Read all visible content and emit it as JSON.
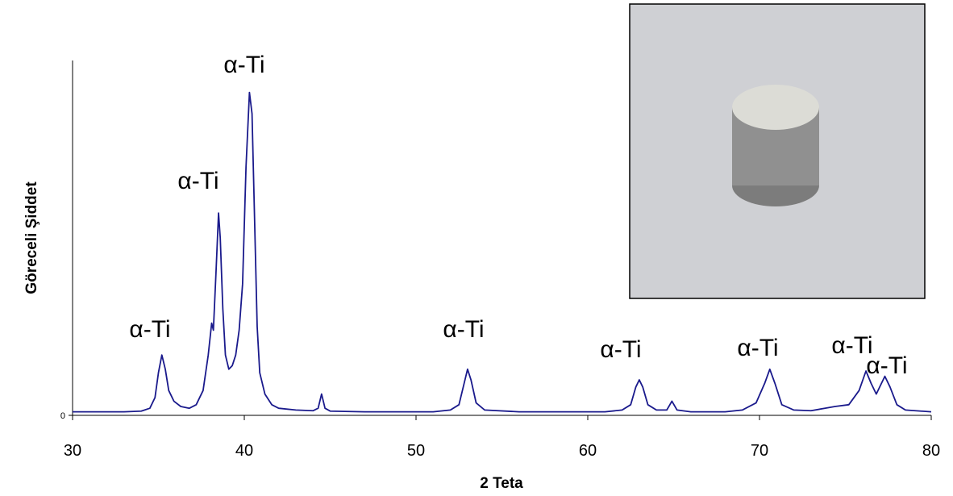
{
  "chart_data": {
    "type": "line",
    "x_label": "2 Teta",
    "y_label": "Göreceli Şiddet",
    "annotations": [
      "α-Ti",
      "α-Ti",
      "α-Ti",
      "α-Ti",
      "α-Ti",
      "α-Ti",
      "α-Ti",
      "α-Ti"
    ],
    "xlim": [
      30,
      80
    ],
    "xticks": [
      30,
      40,
      50,
      60,
      70,
      80
    ],
    "ylim": [
      0,
      100
    ],
    "yticks": [
      0
    ],
    "grid": false,
    "series": [
      {
        "color": "#1a1a8c",
        "x": [
          30,
          31,
          32,
          33,
          34,
          34.5,
          34.8,
          35.0,
          35.2,
          35.4,
          35.6,
          35.9,
          36.3,
          36.8,
          37.2,
          37.6,
          37.9,
          38.1,
          38.2,
          38.35,
          38.5,
          38.6,
          38.75,
          38.9,
          39.1,
          39.3,
          39.5,
          39.7,
          39.9,
          40.1,
          40.3,
          40.45,
          40.6,
          40.75,
          40.9,
          41.2,
          41.6,
          42,
          43,
          44,
          44.3,
          44.5,
          44.7,
          45,
          47,
          49,
          51,
          52,
          52.5,
          52.8,
          53.0,
          53.2,
          53.5,
          54,
          56,
          58,
          60,
          61,
          62,
          62.5,
          62.8,
          63.0,
          63.2,
          63.5,
          64,
          64.6,
          64.9,
          65.2,
          66,
          68,
          69,
          69.8,
          70.3,
          70.6,
          70.9,
          71.3,
          72,
          73,
          73.8,
          74.4,
          75.2,
          75.8,
          76.2,
          76.5,
          76.8,
          77.1,
          77.3,
          77.6,
          78,
          78.5,
          80
        ],
        "values": [
          1,
          1,
          1,
          1,
          1.2,
          2,
          5,
          12,
          17,
          13,
          7,
          4,
          2.5,
          2,
          3,
          7,
          17,
          26,
          24,
          40,
          57,
          50,
          30,
          17,
          13,
          14,
          17,
          24,
          37,
          70,
          91,
          85,
          55,
          25,
          12,
          6,
          3,
          2,
          1.5,
          1.3,
          2,
          6,
          2,
          1.2,
          1,
          1,
          1,
          1.5,
          3,
          9,
          13,
          10,
          3.5,
          1.5,
          1,
          1,
          1,
          1,
          1.5,
          3,
          8,
          10,
          8,
          3,
          1.5,
          1.5,
          4,
          1.5,
          1,
          1,
          1.5,
          3.5,
          9,
          13,
          9,
          3,
          1.5,
          1.3,
          2,
          2.5,
          3,
          7,
          12.5,
          9,
          6,
          9,
          11,
          8,
          3,
          1.5,
          1
        ]
      }
    ]
  }
}
